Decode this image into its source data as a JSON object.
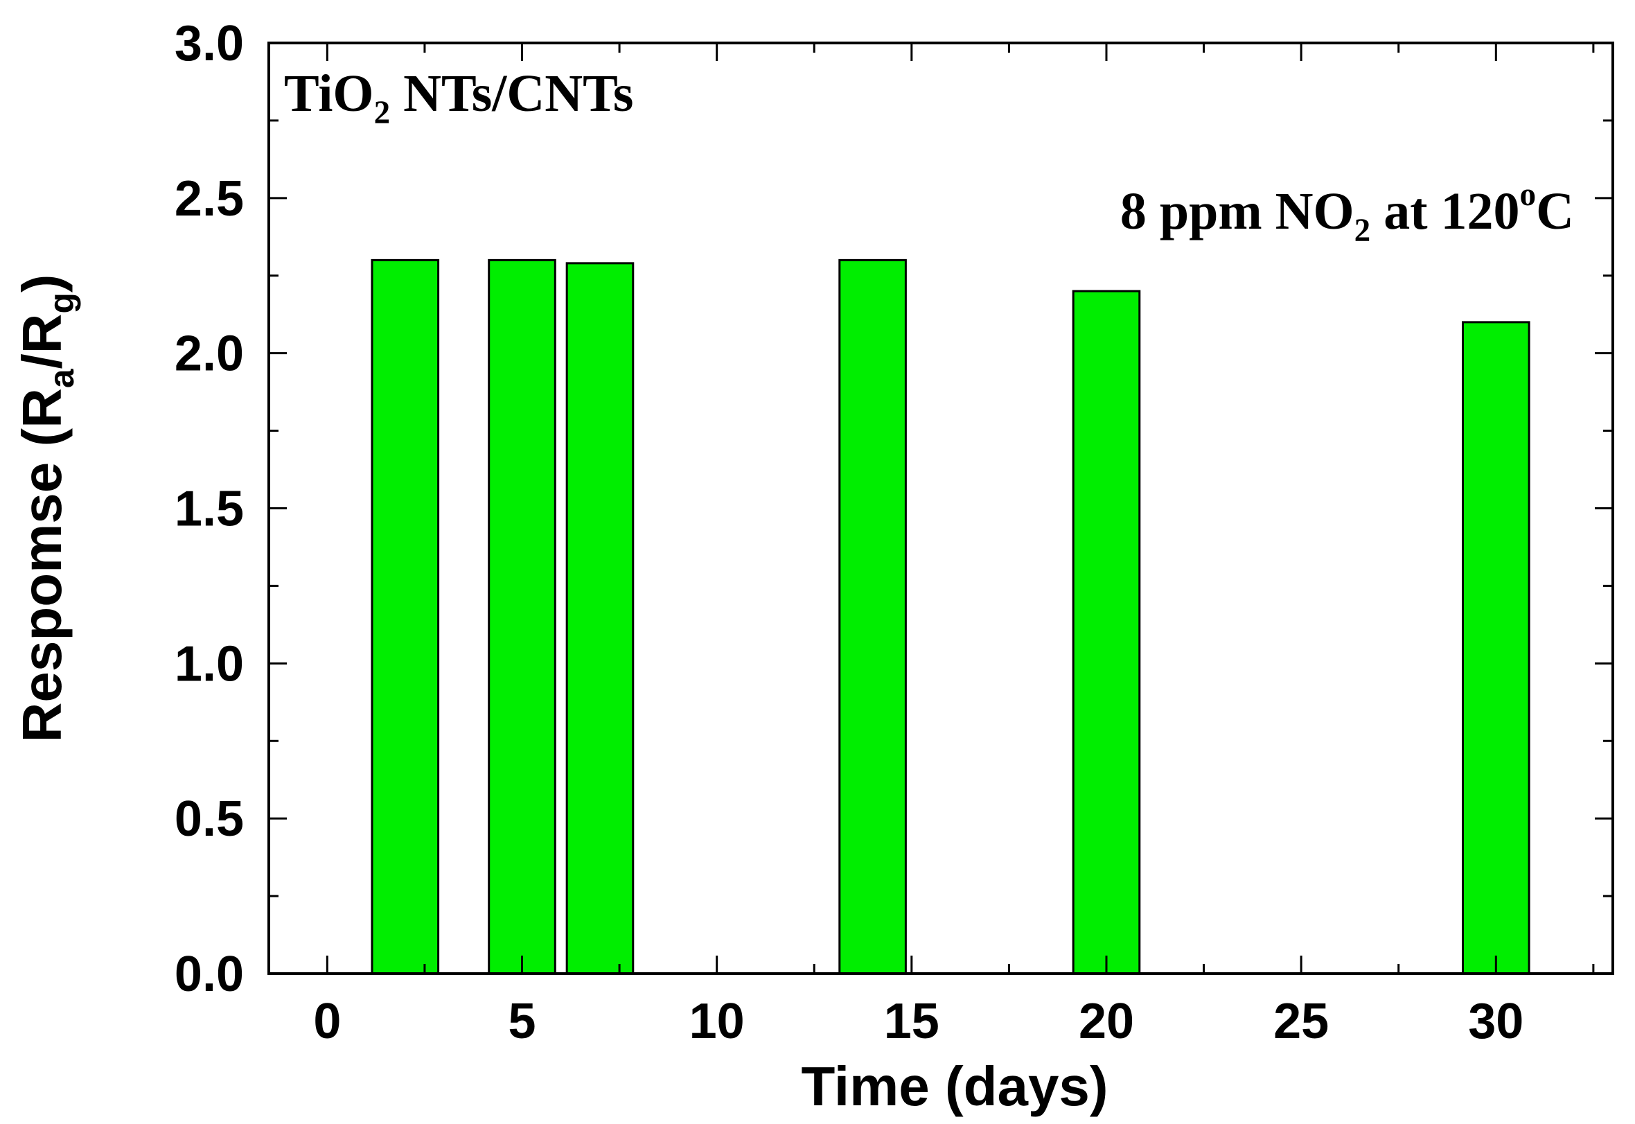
{
  "chart_data": {
    "type": "bar",
    "x": [
      2,
      5,
      7,
      14,
      20,
      30
    ],
    "values": [
      2.3,
      2.3,
      2.29,
      2.3,
      2.2,
      2.1
    ],
    "bar_width_days": 1.7,
    "xlabel": "Time (days)",
    "ylabel_parts": {
      "main": "Respomse (R",
      "sub1": "a",
      "mid": "/R",
      "sub2": "g",
      "end": ")"
    },
    "xlim": [
      -1.5,
      33
    ],
    "ylim": [
      0,
      3.0
    ],
    "xticks": [
      0,
      5,
      10,
      15,
      20,
      25,
      30
    ],
    "xtick_labels": [
      "0",
      "5",
      "10",
      "15",
      "20",
      "25",
      "30"
    ],
    "yticks": [
      0,
      0.5,
      1.0,
      1.5,
      2.0,
      2.5,
      3.0
    ],
    "ytick_labels": [
      "0.0",
      "0.5",
      "1.0",
      "1.5",
      "2.0",
      "2.5",
      "3.0"
    ],
    "annotations": {
      "sample": {
        "pre": "TiO",
        "sub": "2",
        "post": " NTs/CNTs"
      },
      "condition": {
        "pre": "8 ppm NO",
        "sub": "2",
        "mid": " at 120",
        "sup": "o",
        "post": "C"
      }
    },
    "bar_color": "#00ee00",
    "grid": false,
    "legend": "none"
  }
}
